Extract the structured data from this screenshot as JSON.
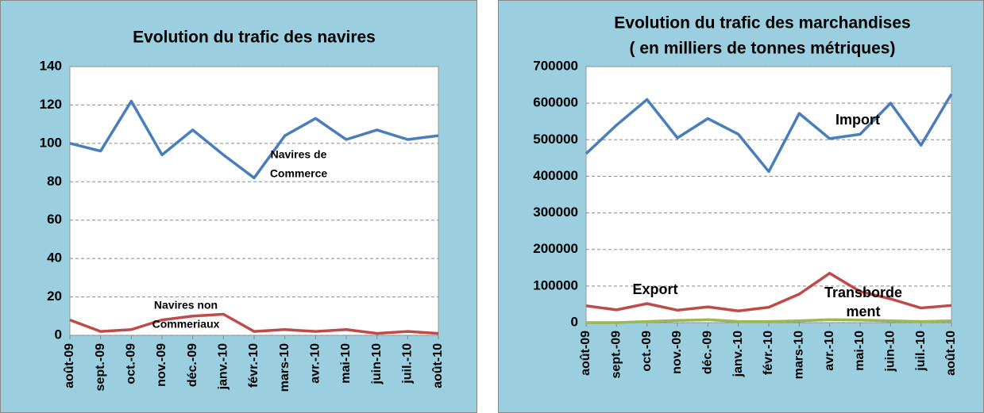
{
  "chart_data": [
    {
      "type": "line",
      "title": "Evolution du trafic des navires",
      "categories": [
        "août-09",
        "sept.-09",
        "oct.-09",
        "nov.-09",
        "déc.-09",
        "janv.-10",
        "févr.-10",
        "mars-10",
        "avr.-10",
        "mai-10",
        "juin-10",
        "juil.-10",
        "août-10"
      ],
      "series": [
        {
          "color": "#4a7ebb",
          "values": [
            100,
            96,
            122,
            94,
            107,
            94,
            82,
            104,
            113,
            102,
            107,
            102,
            104
          ]
        },
        {
          "color": "#be4b48",
          "values": [
            8,
            2,
            3,
            8,
            10,
            11,
            2,
            3,
            2,
            3,
            1,
            2,
            1
          ]
        }
      ],
      "annotations": [
        {
          "lines": [
            "Navires de",
            "Commerce"
          ]
        },
        {
          "lines": [
            "Navires non",
            "Commeriaux"
          ]
        }
      ],
      "ylim": [
        0,
        140
      ],
      "yticks": [
        0,
        20,
        40,
        60,
        80,
        100,
        120,
        140
      ],
      "grid": true
    },
    {
      "type": "line",
      "title": "Evolution du trafic des marchandises",
      "subtitle": "( en milliers de tonnes métriques)",
      "categories": [
        "août-09",
        "sept.-09",
        "oct.-09",
        "nov.-09",
        "déc.-09",
        "janv.-10",
        "févr.-10",
        "mars-10",
        "avr.-10",
        "mai-10",
        "juin-10",
        "juil.-10",
        "août-10"
      ],
      "series": [
        {
          "color": "#4a7ebb",
          "values": [
            462000,
            540000,
            610000,
            505000,
            558000,
            515000,
            413000,
            572000,
            503000,
            515000,
            600000,
            485000,
            625000
          ]
        },
        {
          "color": "#be4b48",
          "values": [
            46000,
            35000,
            52000,
            34000,
            43000,
            32000,
            42000,
            78000,
            135000,
            85000,
            65000,
            40000,
            47000
          ]
        },
        {
          "color": "#98b954",
          "values": [
            0,
            0,
            3000,
            6000,
            8000,
            3000,
            3000,
            5000,
            8000,
            7000,
            5000,
            3000,
            5000
          ]
        }
      ],
      "annotations": [
        {
          "lines": [
            "Import"
          ]
        },
        {
          "lines": [
            "Export"
          ]
        },
        {
          "lines": [
            "Transborde",
            "ment"
          ]
        }
      ],
      "ylim": [
        0,
        700000
      ],
      "yticks": [
        0,
        100000,
        200000,
        300000,
        400000,
        500000,
        600000,
        700000
      ],
      "grid": true
    }
  ]
}
